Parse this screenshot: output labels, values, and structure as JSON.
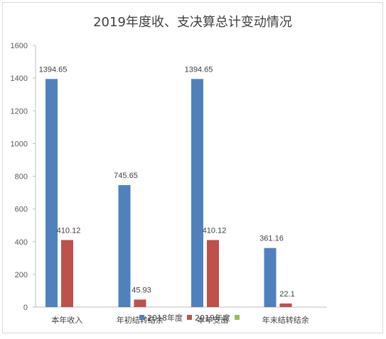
{
  "chart_data": {
    "type": "bar",
    "title": "2019年度收、支决算总计变动情况",
    "categories": [
      "本年收入",
      "年初结转结余",
      "本年支出",
      "年末结转结余"
    ],
    "series": [
      {
        "name": "2018年度",
        "values": [
          1394.65,
          745.65,
          1394.65,
          361.16
        ],
        "color": "#4f81bd"
      },
      {
        "name": "2019年度",
        "values": [
          410.12,
          45.93,
          410.12,
          22.1
        ],
        "color": "#c0504d"
      },
      {
        "name": "",
        "values": [
          null,
          null,
          null,
          null
        ],
        "color": "#9bbb59"
      }
    ],
    "data_labels": [
      [
        "1394.65",
        "745.65",
        "1394.65",
        "361.16"
      ],
      [
        "410.12",
        "45.93",
        "410.12",
        "22.1"
      ]
    ],
    "ylim": [
      0,
      1600
    ],
    "yticks": [
      0,
      200,
      400,
      600,
      800,
      1000,
      1200,
      1400,
      1600
    ],
    "xlabel": "",
    "ylabel": "",
    "grid": false,
    "legend_position": "bottom"
  }
}
